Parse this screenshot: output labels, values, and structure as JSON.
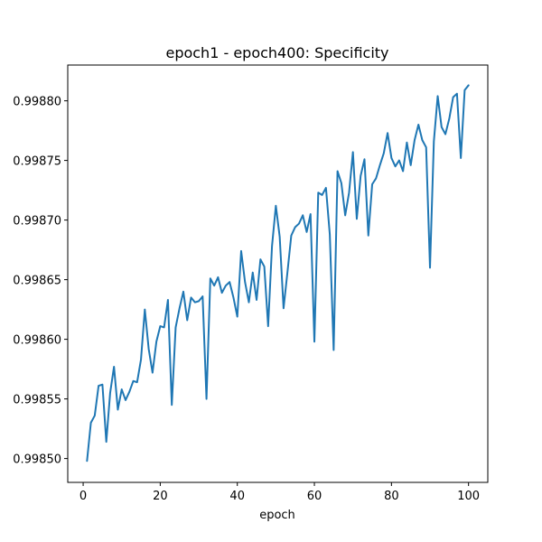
{
  "chart_data": {
    "type": "line",
    "title": "epoch1 - epoch400: Specificity",
    "xlabel": "epoch",
    "ylabel": "",
    "xlim": [
      -4,
      105
    ],
    "ylim": [
      0.99848,
      0.99883
    ],
    "x_ticks": [
      0,
      20,
      40,
      60,
      80,
      100
    ],
    "x_tick_labels": [
      "0",
      "20",
      "40",
      "60",
      "80",
      "100"
    ],
    "y_ticks": [
      0.9985,
      0.99855,
      0.9986,
      0.99865,
      0.9987,
      0.99875,
      0.9988
    ],
    "y_tick_labels": [
      "0.99850",
      "0.99855",
      "0.99860",
      "0.99865",
      "0.99870",
      "0.99875",
      "0.99880"
    ],
    "grid": false,
    "line_color": "#1f77b4",
    "x": [
      1,
      2,
      3,
      4,
      5,
      6,
      7,
      8,
      9,
      10,
      11,
      12,
      13,
      14,
      15,
      16,
      17,
      18,
      19,
      20,
      21,
      22,
      23,
      24,
      25,
      26,
      27,
      28,
      29,
      30,
      31,
      32,
      33,
      34,
      35,
      36,
      37,
      38,
      39,
      40,
      41,
      42,
      43,
      44,
      45,
      46,
      47,
      48,
      49,
      50,
      51,
      52,
      53,
      54,
      55,
      56,
      57,
      58,
      59,
      60,
      61,
      62,
      63,
      64,
      65,
      66,
      67,
      68,
      69,
      70,
      71,
      72,
      73,
      74,
      75,
      76,
      77,
      78,
      79,
      80,
      81,
      82,
      83,
      84,
      85,
      86,
      87,
      88,
      89,
      90,
      91,
      92,
      93,
      94,
      95,
      96,
      97,
      98,
      99,
      100
    ],
    "series": [
      {
        "values": [
          0.998498,
          0.99853,
          0.998536,
          0.998561,
          0.998562,
          0.998514,
          0.998555,
          0.998577,
          0.998541,
          0.998558,
          0.998549,
          0.998556,
          0.998565,
          0.998564,
          0.998583,
          0.998625,
          0.998592,
          0.998572,
          0.998598,
          0.998611,
          0.99861,
          0.998633,
          0.998545,
          0.99861,
          0.998626,
          0.99864,
          0.998616,
          0.998635,
          0.998631,
          0.998632,
          0.998636,
          0.99855,
          0.998651,
          0.998645,
          0.998652,
          0.998639,
          0.998645,
          0.998648,
          0.998635,
          0.998619,
          0.998674,
          0.998648,
          0.998631,
          0.998656,
          0.998633,
          0.998667,
          0.998661,
          0.998611,
          0.998678,
          0.998712,
          0.998686,
          0.998626,
          0.998656,
          0.998687,
          0.998694,
          0.998697,
          0.998704,
          0.99869,
          0.998705,
          0.998598,
          0.998723,
          0.998721,
          0.998727,
          0.998688,
          0.998591,
          0.998741,
          0.998731,
          0.998704,
          0.998723,
          0.998757,
          0.998701,
          0.998737,
          0.998751,
          0.998687,
          0.99873,
          0.998735,
          0.998746,
          0.998756,
          0.998773,
          0.998752,
          0.998745,
          0.99875,
          0.998741,
          0.998765,
          0.998746,
          0.998767,
          0.99878,
          0.998767,
          0.998761,
          0.99866,
          0.998766,
          0.998804,
          0.998778,
          0.998772,
          0.998785,
          0.998803,
          0.998806,
          0.998752,
          0.998809,
          0.998813
        ]
      }
    ]
  }
}
